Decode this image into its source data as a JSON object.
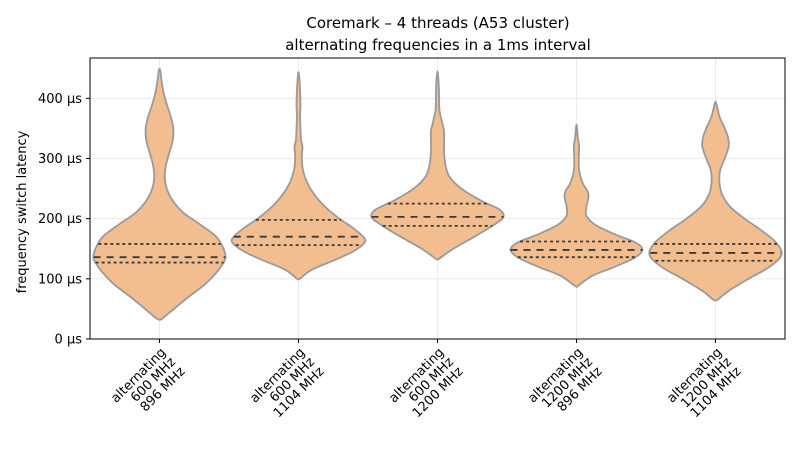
{
  "chart_data": {
    "type": "violin",
    "title": "Coremark – 4 threads (A53 cluster)",
    "subtitle": "alternating frequencies in a 1ms interval",
    "xlabel": "",
    "ylabel": "frequency switch latency",
    "ylim": [
      0,
      467
    ],
    "y_ticks": [
      {
        "value": 0,
        "label": "0 µs"
      },
      {
        "value": 100,
        "label": "100 µs"
      },
      {
        "value": 200,
        "label": "200 µs"
      },
      {
        "value": 300,
        "label": "300 µs"
      },
      {
        "value": 400,
        "label": "400 µs"
      }
    ],
    "grid": true,
    "fill_color": "#f2bd8f",
    "edge_color": "#9a9a9a",
    "categories": [
      {
        "label_lines": [
          "alternating",
          "600 MHz",
          "896 MHz"
        ],
        "min": 33,
        "max": 447,
        "q1": 127,
        "median": 136,
        "q3": 158,
        "density": [
          [
            33,
            0.03
          ],
          [
            50,
            0.22
          ],
          [
            70,
            0.44
          ],
          [
            90,
            0.68
          ],
          [
            110,
            0.86
          ],
          [
            125,
            0.96
          ],
          [
            135,
            1.0
          ],
          [
            150,
            0.97
          ],
          [
            170,
            0.86
          ],
          [
            190,
            0.62
          ],
          [
            210,
            0.36
          ],
          [
            230,
            0.2
          ],
          [
            250,
            0.11
          ],
          [
            270,
            0.08
          ],
          [
            290,
            0.1
          ],
          [
            310,
            0.15
          ],
          [
            330,
            0.2
          ],
          [
            350,
            0.21
          ],
          [
            370,
            0.17
          ],
          [
            390,
            0.11
          ],
          [
            410,
            0.06
          ],
          [
            430,
            0.03
          ],
          [
            447,
            0.01
          ]
        ]
      },
      {
        "label_lines": [
          "alternating",
          "600 MHz",
          "1104 MHz"
        ],
        "min": 100,
        "max": 442,
        "q1": 156,
        "median": 170,
        "q3": 198,
        "density": [
          [
            100,
            0.02
          ],
          [
            115,
            0.2
          ],
          [
            130,
            0.52
          ],
          [
            145,
            0.82
          ],
          [
            160,
            1.0
          ],
          [
            170,
            0.98
          ],
          [
            185,
            0.82
          ],
          [
            200,
            0.62
          ],
          [
            220,
            0.4
          ],
          [
            240,
            0.24
          ],
          [
            260,
            0.13
          ],
          [
            280,
            0.07
          ],
          [
            300,
            0.05
          ],
          [
            320,
            0.06
          ],
          [
            330,
            0.04
          ],
          [
            350,
            0.03
          ],
          [
            370,
            0.025
          ],
          [
            390,
            0.03
          ],
          [
            410,
            0.025
          ],
          [
            430,
            0.015
          ],
          [
            442,
            0.005
          ]
        ]
      },
      {
        "label_lines": [
          "alternating",
          "600 MHz",
          "1200 MHz"
        ],
        "min": 133,
        "max": 442,
        "q1": 188,
        "median": 203,
        "q3": 225,
        "density": [
          [
            133,
            0.02
          ],
          [
            150,
            0.24
          ],
          [
            170,
            0.56
          ],
          [
            190,
            0.86
          ],
          [
            203,
            1.0
          ],
          [
            215,
            0.94
          ],
          [
            230,
            0.66
          ],
          [
            250,
            0.36
          ],
          [
            270,
            0.18
          ],
          [
            290,
            0.12
          ],
          [
            310,
            0.1
          ],
          [
            330,
            0.1
          ],
          [
            345,
            0.1
          ],
          [
            360,
            0.07
          ],
          [
            380,
            0.03
          ],
          [
            400,
            0.025
          ],
          [
            420,
            0.02
          ],
          [
            442,
            0.005
          ]
        ]
      },
      {
        "label_lines": [
          "alternating",
          "1200 MHz",
          "896 MHz"
        ],
        "min": 88,
        "max": 354,
        "q1": 136,
        "median": 148,
        "q3": 162,
        "density": [
          [
            88,
            0.02
          ],
          [
            105,
            0.24
          ],
          [
            120,
            0.58
          ],
          [
            135,
            0.88
          ],
          [
            148,
            1.0
          ],
          [
            160,
            0.9
          ],
          [
            175,
            0.56
          ],
          [
            190,
            0.28
          ],
          [
            205,
            0.15
          ],
          [
            220,
            0.15
          ],
          [
            235,
            0.18
          ],
          [
            245,
            0.17
          ],
          [
            260,
            0.09
          ],
          [
            280,
            0.04
          ],
          [
            300,
            0.035
          ],
          [
            320,
            0.04
          ],
          [
            335,
            0.02
          ],
          [
            354,
            0.005
          ]
        ]
      },
      {
        "label_lines": [
          "alternating",
          "1200 MHz",
          "1104 MHz"
        ],
        "min": 65,
        "max": 392,
        "q1": 130,
        "median": 143,
        "q3": 158,
        "density": [
          [
            65,
            0.03
          ],
          [
            80,
            0.2
          ],
          [
            100,
            0.5
          ],
          [
            120,
            0.82
          ],
          [
            140,
            1.0
          ],
          [
            160,
            0.92
          ],
          [
            180,
            0.7
          ],
          [
            200,
            0.44
          ],
          [
            220,
            0.22
          ],
          [
            240,
            0.1
          ],
          [
            260,
            0.06
          ],
          [
            280,
            0.07
          ],
          [
            300,
            0.14
          ],
          [
            320,
            0.2
          ],
          [
            335,
            0.19
          ],
          [
            350,
            0.14
          ],
          [
            370,
            0.06
          ],
          [
            392,
            0.01
          ]
        ]
      }
    ]
  }
}
